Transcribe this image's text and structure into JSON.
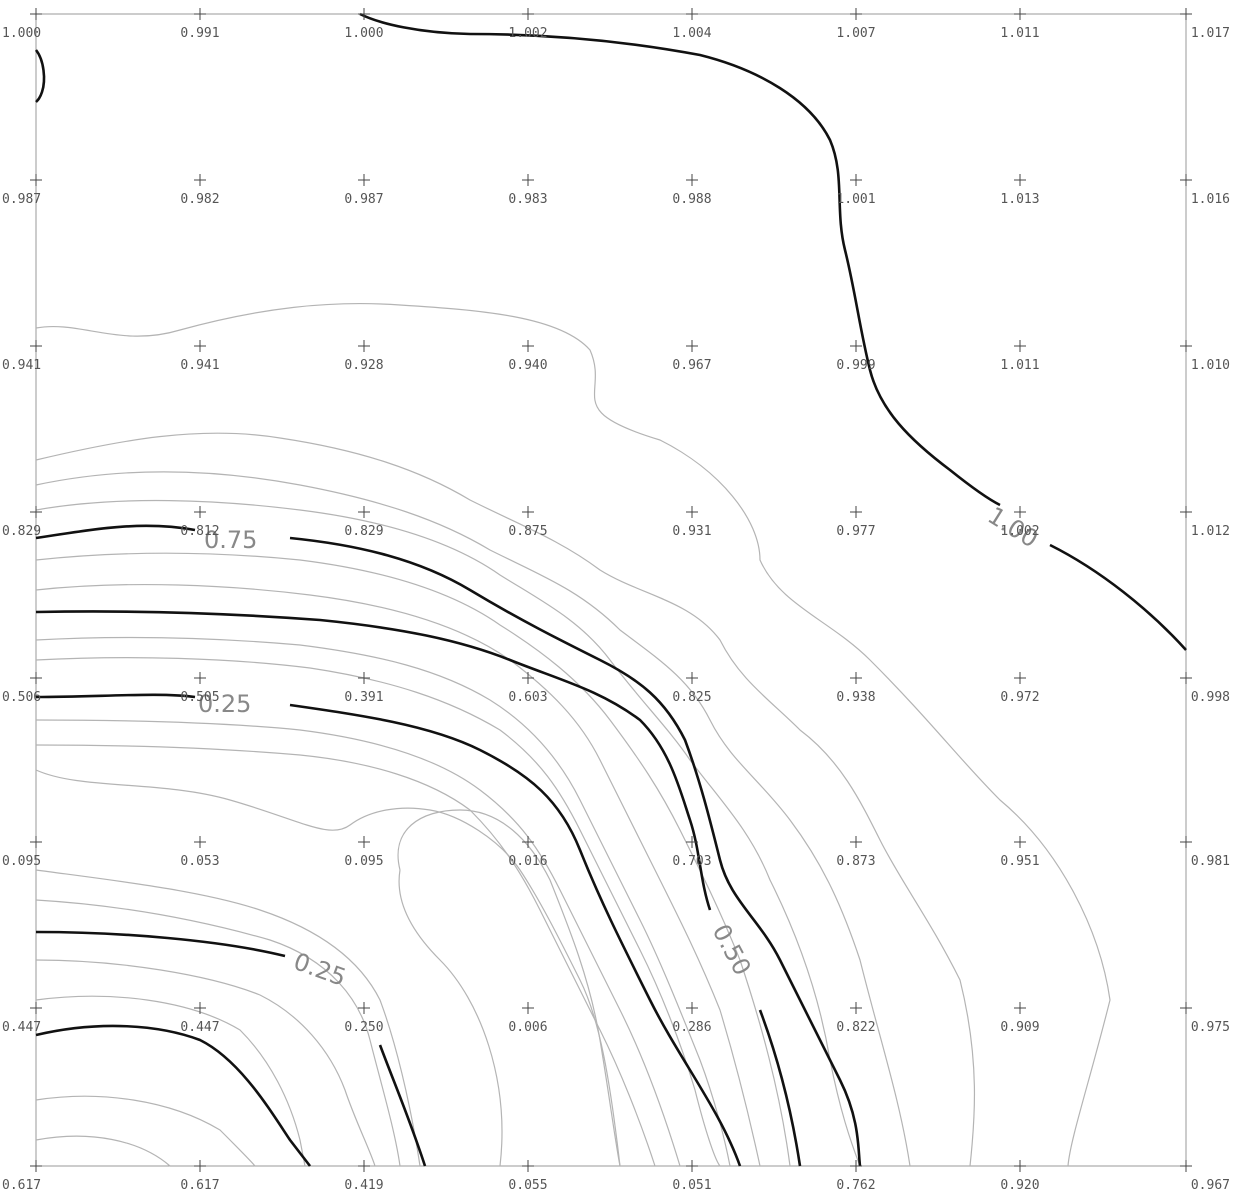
{
  "grid_values": [
    [
      "1.000",
      "0.991",
      "1.000",
      "1.002",
      "1.004",
      "1.007",
      "1.011",
      "1.017"
    ],
    [
      "0.987",
      "0.982",
      "0.987",
      "0.983",
      "0.988",
      "1.001",
      "1.013",
      "1.016"
    ],
    [
      "0.941",
      "0.941",
      "0.928",
      "0.940",
      "0.967",
      "0.999",
      "1.011",
      "1.010"
    ],
    [
      "0.829",
      "0.812",
      "0.829",
      "0.875",
      "0.931",
      "0.977",
      "1.002",
      "1.012"
    ],
    [
      "0.506",
      "0.505",
      "0.391",
      "0.603",
      "0.825",
      "0.938",
      "0.972",
      "0.998"
    ],
    [
      "0.095",
      "0.053",
      "0.095",
      "0.016",
      "0.703",
      "0.873",
      "0.951",
      "0.981"
    ],
    [
      "0.447",
      "0.447",
      "0.250",
      "0.006",
      "0.286",
      "0.822",
      "0.909",
      "0.975"
    ],
    [
      "0.617",
      "0.617",
      "0.419",
      "0.055",
      "0.051",
      "0.762",
      "0.920",
      "0.967"
    ]
  ],
  "contour_labels": [
    "1.00",
    "0.75",
    "0.25",
    "0.25",
    "0.50"
  ]
}
